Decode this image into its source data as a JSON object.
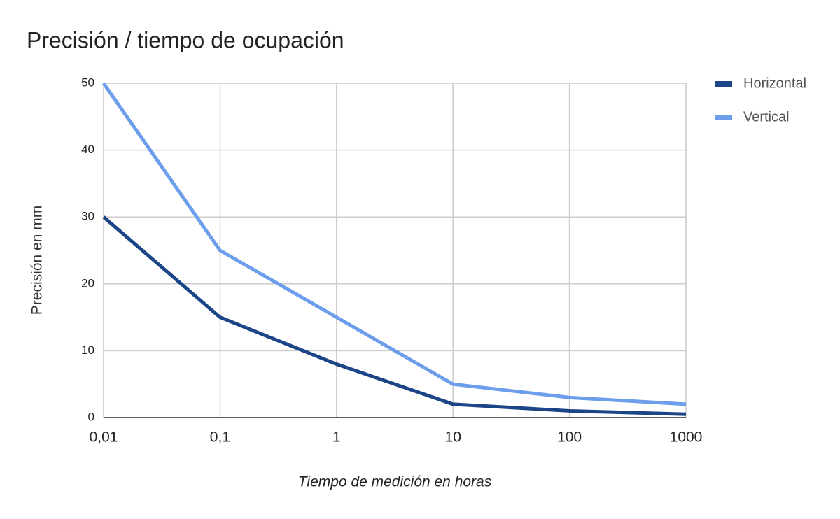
{
  "chart_data": {
    "type": "line",
    "title": "Precisión / tiempo de ocupación",
    "x_label": "Tiempo de medición en horas",
    "y_label": "Precisión en mm",
    "categories": [
      "0,01",
      "0,1",
      "1",
      "10",
      "100",
      "1000"
    ],
    "series": [
      {
        "name": "Horizontal",
        "color": "#1c4587",
        "values": [
          30,
          15,
          8,
          2,
          1,
          0.5
        ]
      },
      {
        "name": "Vertical",
        "color": "#6d9eeb",
        "values": [
          50,
          25,
          15,
          5,
          3,
          2
        ]
      }
    ],
    "ylim": [
      0,
      50
    ],
    "yticks": [
      0,
      10,
      20,
      30,
      40,
      50
    ],
    "grid": true,
    "legend": "right"
  }
}
